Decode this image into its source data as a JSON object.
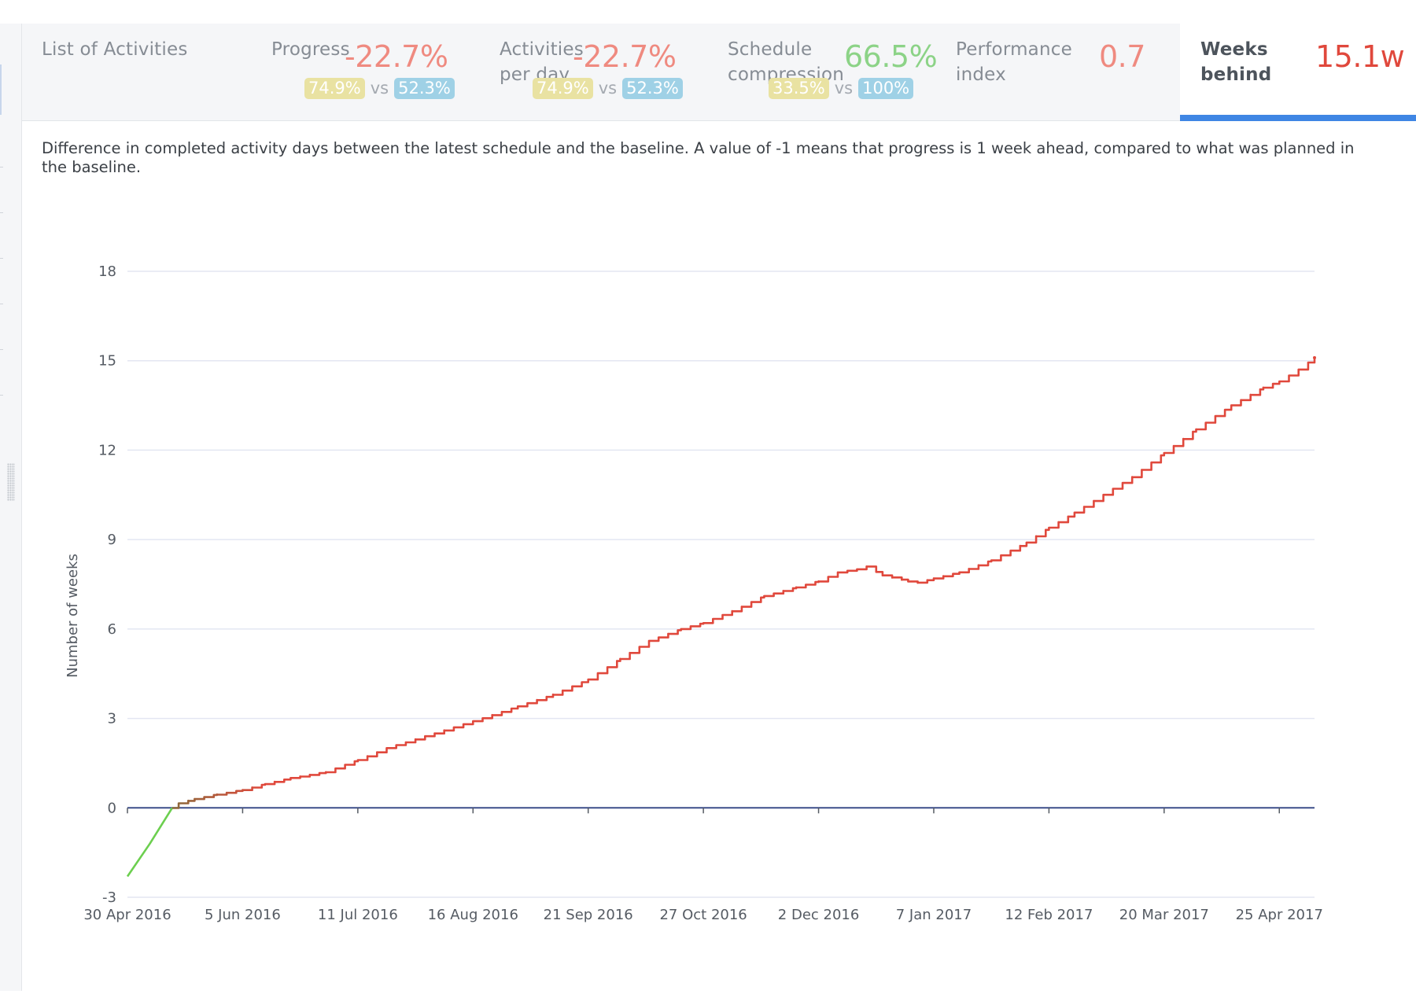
{
  "tabs": {
    "list": {
      "label": "List of Activities"
    },
    "progress": {
      "label": "Progress",
      "value": "-22.7%",
      "badge_a": "74.9%",
      "vs": "vs",
      "badge_b": "52.3%"
    },
    "activities": {
      "label_line1": "Activities",
      "label_line2": "per day",
      "value": "-22.7%",
      "badge_a": "74.9%",
      "vs": "vs",
      "badge_b": "52.3%"
    },
    "compression": {
      "label_line1": "Schedule",
      "label_line2": "compression",
      "value": "66.5%",
      "badge_a": "33.5%",
      "vs": "vs",
      "badge_b": "100%"
    },
    "performance": {
      "label_line1": "Performance",
      "label_line2": "index",
      "value": "0.7"
    },
    "weeks": {
      "label_line1": "Weeks",
      "label_line2": "behind",
      "value": "15.1w"
    }
  },
  "description": "Difference in completed activity days between the latest schedule and the baseline. A value of -1 means that progress is 1 week ahead, compared to what was planned in the baseline.",
  "colors": {
    "negative": "#ef8a80",
    "positive": "#8cd387",
    "accent": "#3f86e4",
    "series_behind": "#e0483c",
    "series_ahead": "#6ccf4f",
    "zero_line": "#3d4f8a",
    "grid": "#e3e6f2"
  },
  "chart_data": {
    "type": "line",
    "title": "",
    "xlabel": "",
    "ylabel": "Number of weeks",
    "ylim": [
      -3,
      18
    ],
    "yticks": [
      -3,
      0,
      3,
      6,
      9,
      12,
      15,
      18
    ],
    "xlim": [
      "2016-04-30",
      "2017-05-06"
    ],
    "xticks": [
      {
        "date": "2016-04-30",
        "label": "30 Apr 2016"
      },
      {
        "date": "2016-06-05",
        "label": "5 Jun 2016"
      },
      {
        "date": "2016-07-11",
        "label": "11 Jul 2016"
      },
      {
        "date": "2016-08-16",
        "label": "16 Aug 2016"
      },
      {
        "date": "2016-09-21",
        "label": "21 Sep 2016"
      },
      {
        "date": "2016-10-27",
        "label": "27 Oct 2016"
      },
      {
        "date": "2016-12-02",
        "label": "2 Dec 2016"
      },
      {
        "date": "2017-01-07",
        "label": "7 Jan 2017"
      },
      {
        "date": "2017-02-12",
        "label": "12 Feb 2017"
      },
      {
        "date": "2017-03-20",
        "label": "20 Mar 2017"
      },
      {
        "date": "2017-04-25",
        "label": "25 Apr 2017"
      }
    ],
    "grid": true,
    "legend": "none",
    "series": [
      {
        "x": [
          "2016-04-30",
          "2016-05-07",
          "2016-05-14",
          "2016-05-16",
          "2016-05-21",
          "2016-05-28",
          "2016-06-05",
          "2016-06-12",
          "2016-06-20",
          "2016-07-01",
          "2016-07-11",
          "2016-07-20",
          "2016-08-01",
          "2016-08-16",
          "2016-08-30",
          "2016-09-10",
          "2016-09-21",
          "2016-10-01",
          "2016-10-10",
          "2016-10-20",
          "2016-10-27",
          "2016-11-05",
          "2016-11-15",
          "2016-11-25",
          "2016-12-02",
          "2016-12-08",
          "2016-12-14",
          "2016-12-17",
          "2016-12-22",
          "2016-12-30",
          "2017-01-02",
          "2017-01-07",
          "2017-01-15",
          "2017-01-25",
          "2017-02-05",
          "2017-02-12",
          "2017-02-20",
          "2017-03-01",
          "2017-03-10",
          "2017-03-20",
          "2017-03-30",
          "2017-04-10",
          "2017-04-20",
          "2017-04-25",
          "2017-05-01",
          "2017-05-06"
        ],
        "y": [
          -2.3,
          -1.2,
          0.0,
          0.15,
          0.3,
          0.45,
          0.6,
          0.8,
          1.0,
          1.2,
          1.6,
          2.0,
          2.4,
          2.9,
          3.4,
          3.8,
          4.3,
          5.0,
          5.6,
          6.0,
          6.2,
          6.6,
          7.1,
          7.4,
          7.6,
          7.9,
          8.0,
          8.1,
          7.8,
          7.6,
          7.55,
          7.7,
          7.9,
          8.3,
          8.9,
          9.4,
          9.9,
          10.5,
          11.1,
          11.9,
          12.7,
          13.5,
          14.1,
          14.3,
          14.7,
          15.1
        ]
      }
    ]
  }
}
